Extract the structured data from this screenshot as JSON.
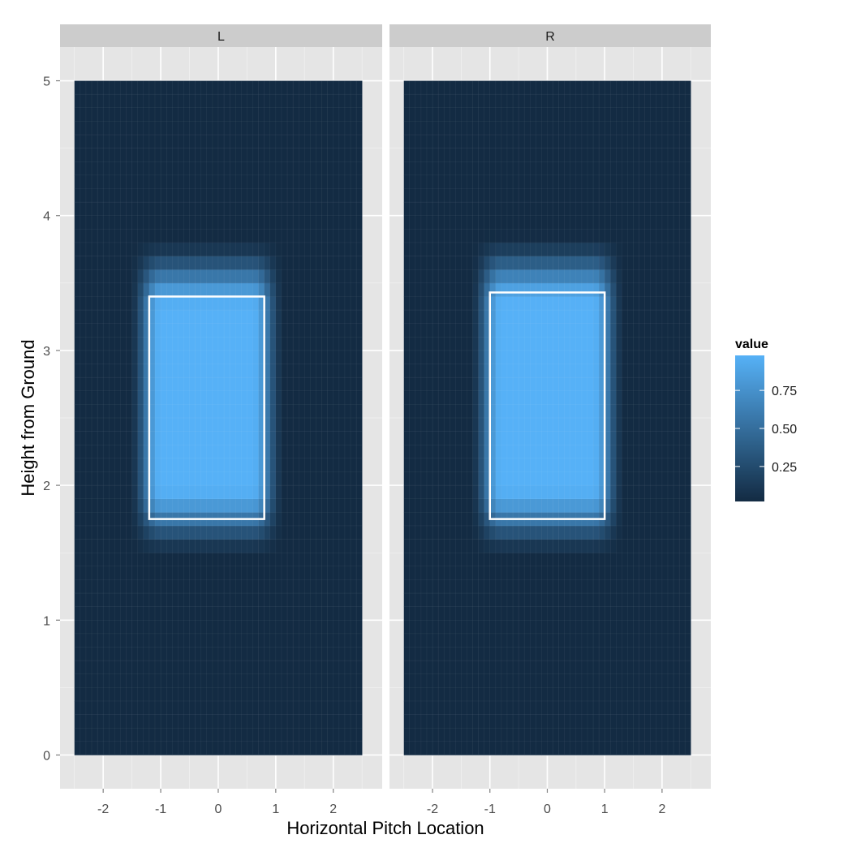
{
  "chart_data": {
    "type": "heatmap",
    "x_label": "Horizontal Pitch Location",
    "y_label": "Height from Ground",
    "xlim": [
      -2.75,
      2.85
    ],
    "ylim": [
      -0.25,
      5.25
    ],
    "x_ticks": [
      -2,
      -1,
      0,
      1,
      2
    ],
    "y_ticks": [
      0,
      1,
      2,
      3,
      4,
      5
    ],
    "tile_grid": {
      "x_range": [
        -2.5,
        2.5
      ],
      "y_range": [
        0,
        5
      ],
      "nx": 50,
      "ny": 50
    },
    "legend": {
      "title": "value",
      "placement": "right",
      "breaks": [
        0.25,
        0.5,
        0.75
      ],
      "break_labels": [
        "0.25",
        "0.50",
        "0.75"
      ],
      "range": [
        0.02,
        0.98
      ],
      "low_color": "#132B43",
      "high_color": "#56B1F7"
    },
    "panels": [
      {
        "label": "L",
        "strike_zone": {
          "x": [
            -1.2,
            0.8
          ],
          "y": [
            1.75,
            3.4
          ]
        },
        "peak_value": 0.98,
        "background_value": 0.02
      },
      {
        "label": "R",
        "strike_zone": {
          "x": [
            -1.0,
            1.0
          ],
          "y": [
            1.75,
            3.43
          ]
        },
        "peak_value": 0.98,
        "background_value": 0.02
      }
    ]
  }
}
